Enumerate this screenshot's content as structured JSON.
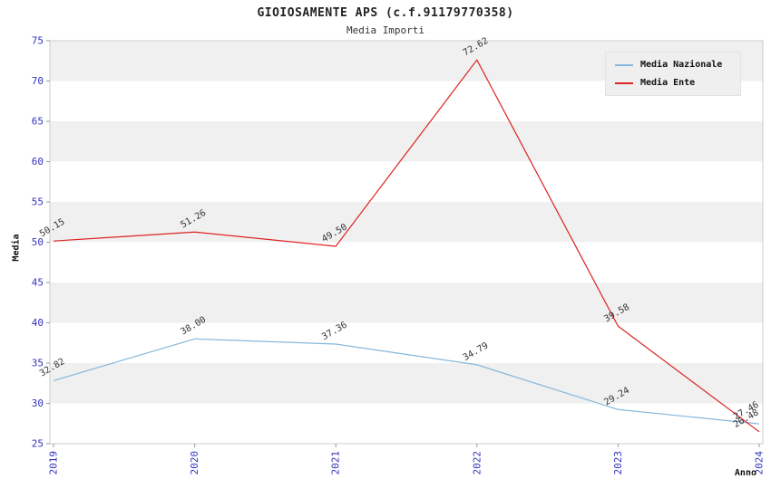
{
  "chart_data": {
    "type": "line",
    "title": "GIOIOSAMENTE APS (c.f.91179770358)",
    "subtitle": "Media Importi",
    "xlabel": "Anno",
    "ylabel": "Media",
    "x": [
      "2019",
      "2020",
      "2021",
      "2022",
      "2023",
      "2024"
    ],
    "ylim": [
      25,
      75
    ],
    "yticks": [
      25,
      30,
      35,
      40,
      45,
      50,
      55,
      60,
      65,
      70,
      75
    ],
    "grid": "horizontal-bands",
    "band_colors": [
      "#ffffff",
      "#f0f0f0"
    ],
    "axis_tick_color": "#3333bb",
    "point_label_color": "#333333",
    "legend_position": "top-right",
    "series": [
      {
        "name": "Media Nazionale",
        "color": "#85b8dc",
        "values": [
          32.82,
          38.0,
          37.36,
          34.79,
          29.24,
          27.46
        ]
      },
      {
        "name": "Media Ente",
        "color": "#dd2222",
        "values": [
          50.15,
          51.26,
          49.5,
          72.62,
          39.58,
          26.48
        ]
      }
    ]
  }
}
